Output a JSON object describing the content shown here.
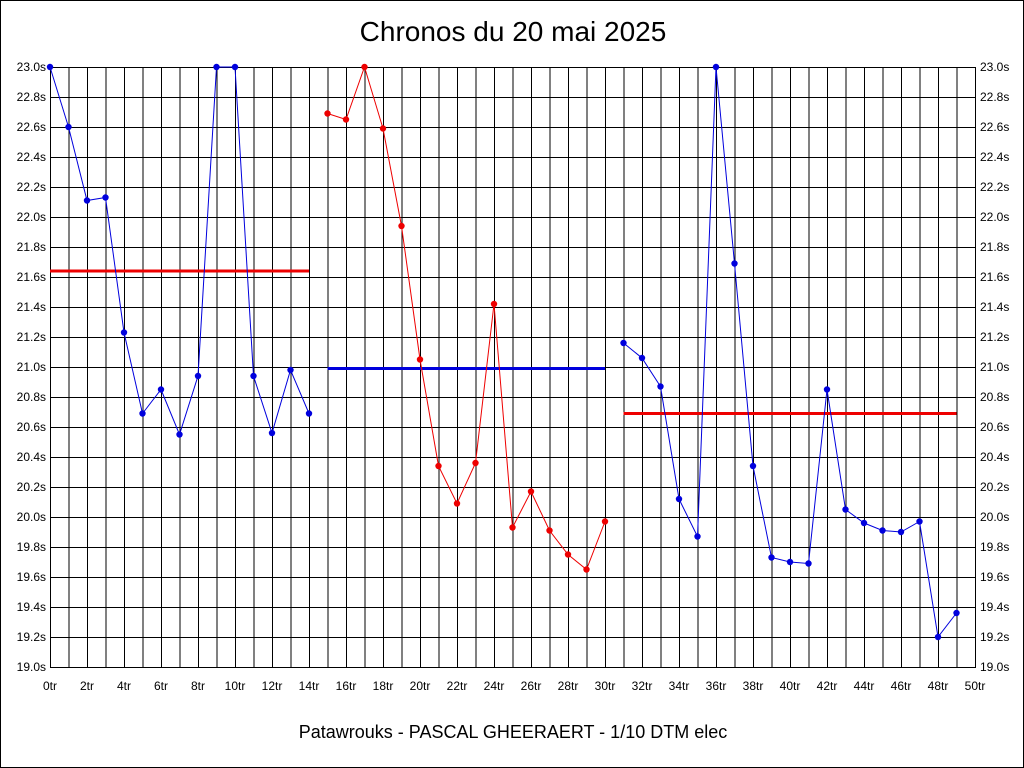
{
  "header": {
    "title": "Chronos du 20 mai 2025"
  },
  "footer": {
    "text": "Patawrouks - PASCAL GHEERAERT - 1/10 DTM elec"
  },
  "chart_data": {
    "type": "line",
    "title": "Chronos du 20 mai 2025",
    "xlabel": "",
    "ylabel": "",
    "xlim": [
      0,
      50
    ],
    "ylim": [
      19.0,
      23.0
    ],
    "grid": true,
    "legend": "none",
    "x_tick_labels": [
      "0tr",
      "2tr",
      "4tr",
      "6tr",
      "8tr",
      "10tr",
      "12tr",
      "14tr",
      "16tr",
      "18tr",
      "20tr",
      "22tr",
      "24tr",
      "26tr",
      "28tr",
      "30tr",
      "32tr",
      "34tr",
      "36tr",
      "38tr",
      "40tr",
      "42tr",
      "44tr",
      "46tr",
      "48tr",
      "50tr"
    ],
    "y_tick_labels": [
      "19.0s",
      "19.2s",
      "19.4s",
      "19.6s",
      "19.8s",
      "20.0s",
      "20.2s",
      "20.4s",
      "20.6s",
      "20.8s",
      "21.0s",
      "21.2s",
      "21.4s",
      "21.6s",
      "21.8s",
      "22.0s",
      "22.2s",
      "22.4s",
      "22.6s",
      "22.8s",
      "23.0s"
    ],
    "series": [
      {
        "color": "#0000dd",
        "x": [
          0,
          1,
          2,
          3,
          4,
          5,
          6,
          7,
          8,
          9,
          10,
          11,
          12,
          13,
          14
        ],
        "y": [
          23.0,
          22.6,
          22.11,
          22.13,
          21.23,
          20.69,
          20.85,
          20.55,
          20.94,
          23.0,
          23.0,
          20.94,
          20.56,
          20.98,
          20.69
        ],
        "mean": 21.64,
        "mean_color": "#ee0000"
      },
      {
        "color": "#ee0000",
        "x": [
          15,
          16,
          17,
          18,
          19,
          20,
          21,
          22,
          23,
          24,
          25,
          26,
          27,
          28,
          29,
          30
        ],
        "y": [
          22.69,
          22.65,
          23.0,
          22.59,
          21.94,
          21.05,
          20.34,
          20.09,
          20.36,
          21.42,
          19.93,
          20.17,
          19.91,
          19.75,
          19.65,
          19.97
        ],
        "mean": 20.99,
        "mean_color": "#0000dd"
      },
      {
        "color": "#0000dd",
        "x": [
          31,
          32,
          33,
          34,
          35,
          36,
          37,
          38,
          39,
          40,
          41,
          42,
          43,
          44,
          45,
          46,
          47,
          48,
          49
        ],
        "y": [
          21.16,
          21.06,
          20.87,
          20.12,
          19.87,
          23.0,
          21.69,
          20.34,
          19.73,
          19.7,
          19.69,
          20.85,
          20.05,
          19.96,
          19.91,
          19.9,
          19.97,
          19.2,
          19.36
        ],
        "mean": 20.69,
        "mean_color": "#ee0000"
      }
    ]
  }
}
